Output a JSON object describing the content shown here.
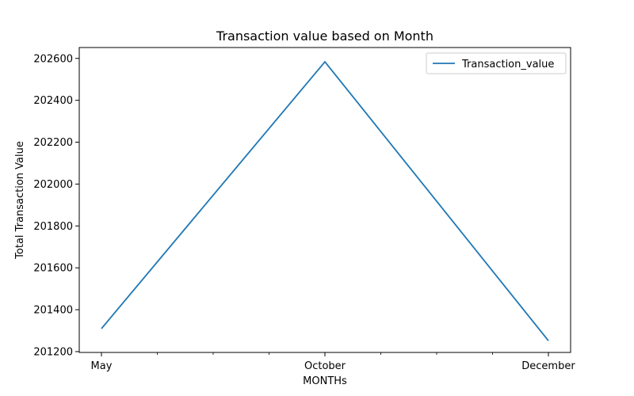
{
  "chart_data": {
    "type": "line",
    "title": "Transaction value based on Month",
    "xlabel": "MONTHs",
    "ylabel": "Total Transaction Value",
    "categories": [
      "May",
      "October",
      "December"
    ],
    "x_tick_labels": [
      "May",
      "October",
      "December"
    ],
    "y_ticks": [
      201200,
      201400,
      201600,
      201800,
      202000,
      202200,
      202400,
      202600
    ],
    "ylim": [
      201196,
      202652
    ],
    "series": [
      {
        "name": "Transaction_value",
        "values": [
          201310,
          202584,
          201252
        ],
        "color": "#1f77b4"
      }
    ],
    "legend": {
      "position": "top-right"
    },
    "grid": false
  }
}
